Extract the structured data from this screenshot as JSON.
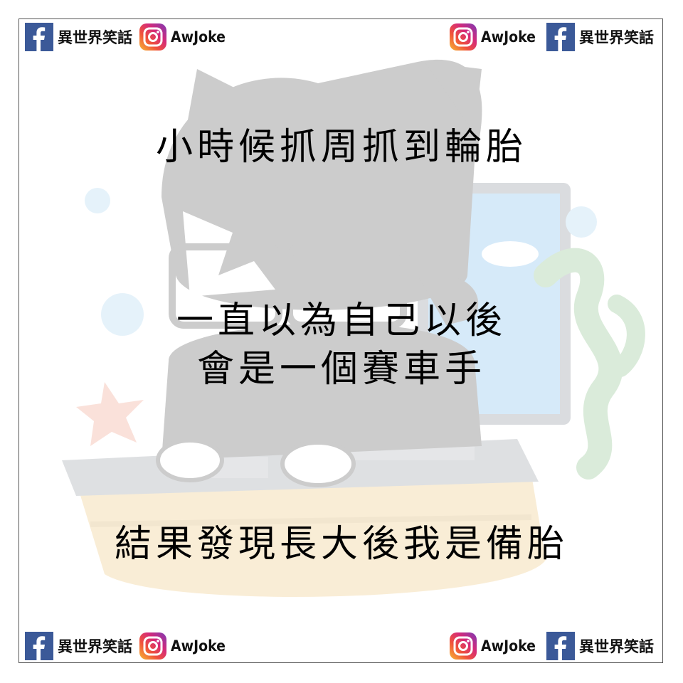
{
  "brand": {
    "facebook_name": "異世界笑話",
    "instagram_name": "AwJoke"
  },
  "icons": {
    "facebook": "facebook-icon",
    "instagram": "instagram-icon",
    "facebook_color": "#3b5998"
  },
  "caption": {
    "line1": "小時候抓周抓到輪胎",
    "line2": "一直以為自己以後",
    "line3": "會是一個賽車手",
    "line4": "結果發現長大後我是備胎"
  }
}
